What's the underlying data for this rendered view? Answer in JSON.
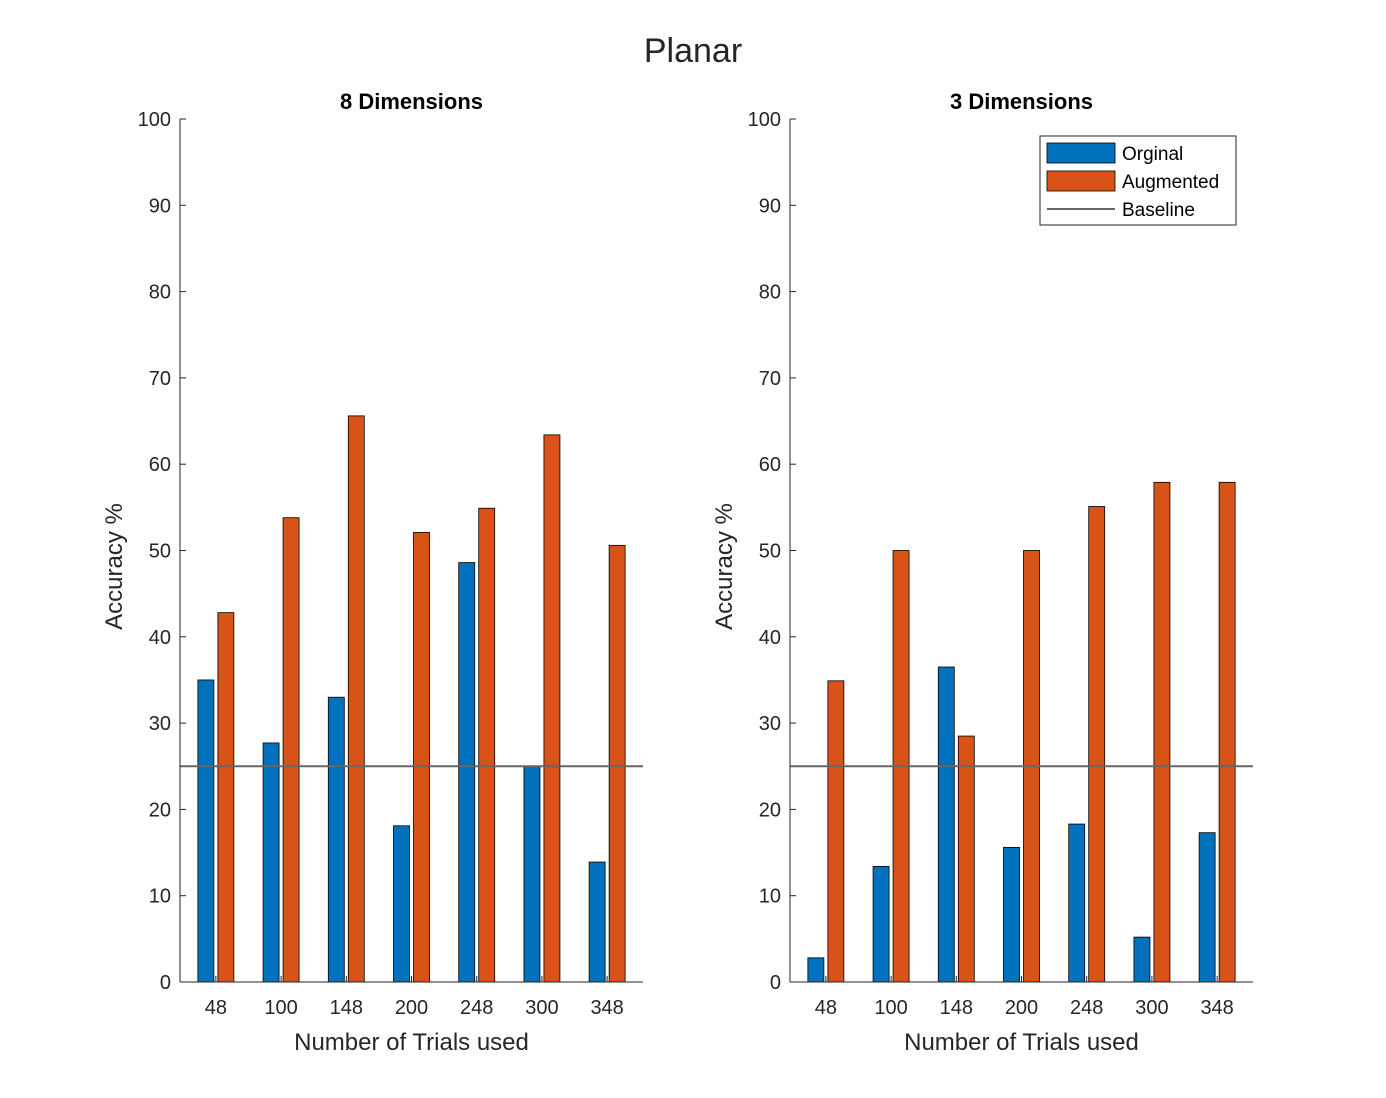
{
  "figure": {
    "title": "Planar"
  },
  "colors": {
    "original": "#0072BD",
    "augmented": "#D95319",
    "baseline": "#666666",
    "axis": "#262626"
  },
  "chart_data": [
    {
      "type": "bar",
      "title": "8 Dimensions",
      "xlabel": "Number of Trials used",
      "ylabel": "Accuracy %",
      "ylim": [
        0,
        100
      ],
      "yticks": [
        0,
        10,
        20,
        30,
        40,
        50,
        60,
        70,
        80,
        90,
        100
      ],
      "categories": [
        "48",
        "100",
        "148",
        "200",
        "248",
        "300",
        "348"
      ],
      "series": [
        {
          "name": "Orginal",
          "values": [
            35.0,
            27.7,
            33.0,
            18.1,
            48.6,
            25.0,
            13.9
          ]
        },
        {
          "name": "Augmented",
          "values": [
            42.8,
            53.8,
            65.6,
            52.1,
            54.9,
            63.4,
            50.6
          ]
        }
      ],
      "baseline": {
        "name": "Baseline",
        "value": 25
      },
      "grid": false,
      "legend": "none"
    },
    {
      "type": "bar",
      "title": "3 Dimensions",
      "xlabel": "Number of Trials used",
      "ylabel": "Accuracy %",
      "ylim": [
        0,
        100
      ],
      "yticks": [
        0,
        10,
        20,
        30,
        40,
        50,
        60,
        70,
        80,
        90,
        100
      ],
      "categories": [
        "48",
        "100",
        "148",
        "200",
        "248",
        "300",
        "348"
      ],
      "series": [
        {
          "name": "Orginal",
          "values": [
            2.8,
            13.4,
            36.5,
            15.6,
            18.3,
            5.2,
            17.3
          ]
        },
        {
          "name": "Augmented",
          "values": [
            34.9,
            50.0,
            28.5,
            50.0,
            55.1,
            57.9,
            57.9
          ]
        }
      ],
      "baseline": {
        "name": "Baseline",
        "value": 25
      },
      "grid": false,
      "legend": "top-right"
    }
  ]
}
